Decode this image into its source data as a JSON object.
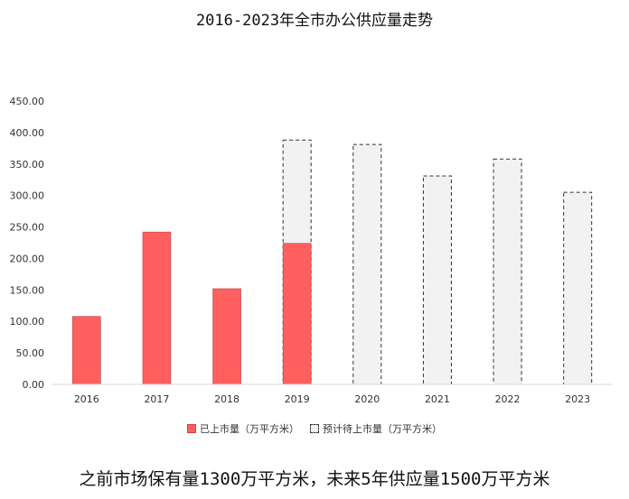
{
  "chart_data": {
    "type": "bar",
    "title": "2016-2023年全市办公供应量走势",
    "categories": [
      "2016",
      "2017",
      "2018",
      "2019",
      "2020",
      "2021",
      "2022",
      "2023"
    ],
    "series": [
      {
        "name": "已上市量（万平方米）",
        "color": "#FF5F5F",
        "values": [
          108,
          242,
          152,
          224,
          null,
          null,
          null,
          null
        ]
      },
      {
        "name": "预计待上市量（万平方米）",
        "color": "#F2F2F2",
        "values": [
          null,
          null,
          null,
          388,
          381,
          331,
          358,
          305
        ]
      }
    ],
    "ylim": [
      0,
      450
    ],
    "yticks": [
      "0.00",
      "50.00",
      "100.00",
      "150.00",
      "200.00",
      "250.00",
      "300.00",
      "350.00",
      "400.00",
      "450.00"
    ],
    "grid": false,
    "legend": "bottom"
  },
  "footer_note": "之前市场保有量1300万平方米，未来5年供应量1500万平方米"
}
